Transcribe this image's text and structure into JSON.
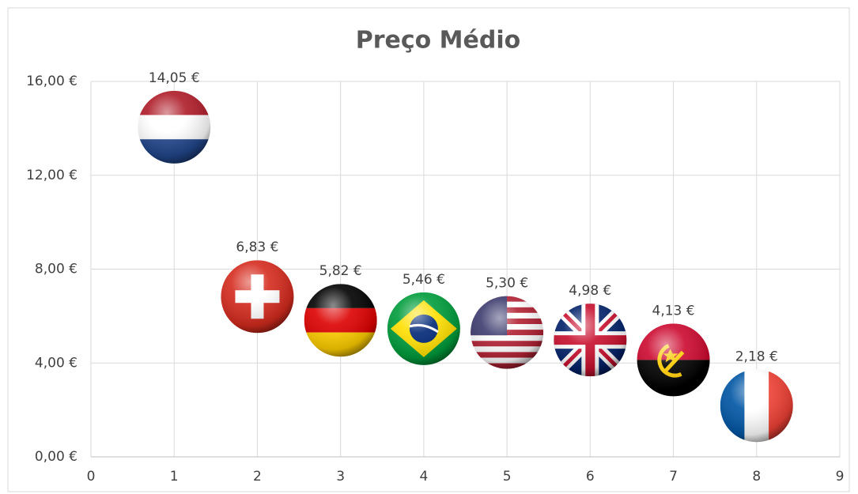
{
  "chart_data": {
    "type": "scatter",
    "title": "Preço Médio",
    "x": [
      1,
      2,
      3,
      4,
      5,
      6,
      7,
      8
    ],
    "values": [
      14.05,
      6.83,
      5.82,
      5.46,
      5.3,
      4.98,
      4.13,
      2.18
    ],
    "value_labels": [
      "14,05 €",
      "6,83 €",
      "5,82 €",
      "5,46 €",
      "5,30 €",
      "4,98 €",
      "4,13 €",
      "2,18 €"
    ],
    "xlim": [
      0,
      9
    ],
    "xticks": [
      0,
      1,
      2,
      3,
      4,
      5,
      6,
      7,
      8,
      9
    ],
    "ylim": [
      0,
      16
    ],
    "yticks": [
      {
        "value": 0,
        "label": "0,00 €"
      },
      {
        "value": 4,
        "label": "4,00 €"
      },
      {
        "value": 8,
        "label": "8,00 €"
      },
      {
        "value": 12,
        "label": "12,00 €"
      },
      {
        "value": 16,
        "label": "16,00 €"
      }
    ],
    "grid": true
  }
}
